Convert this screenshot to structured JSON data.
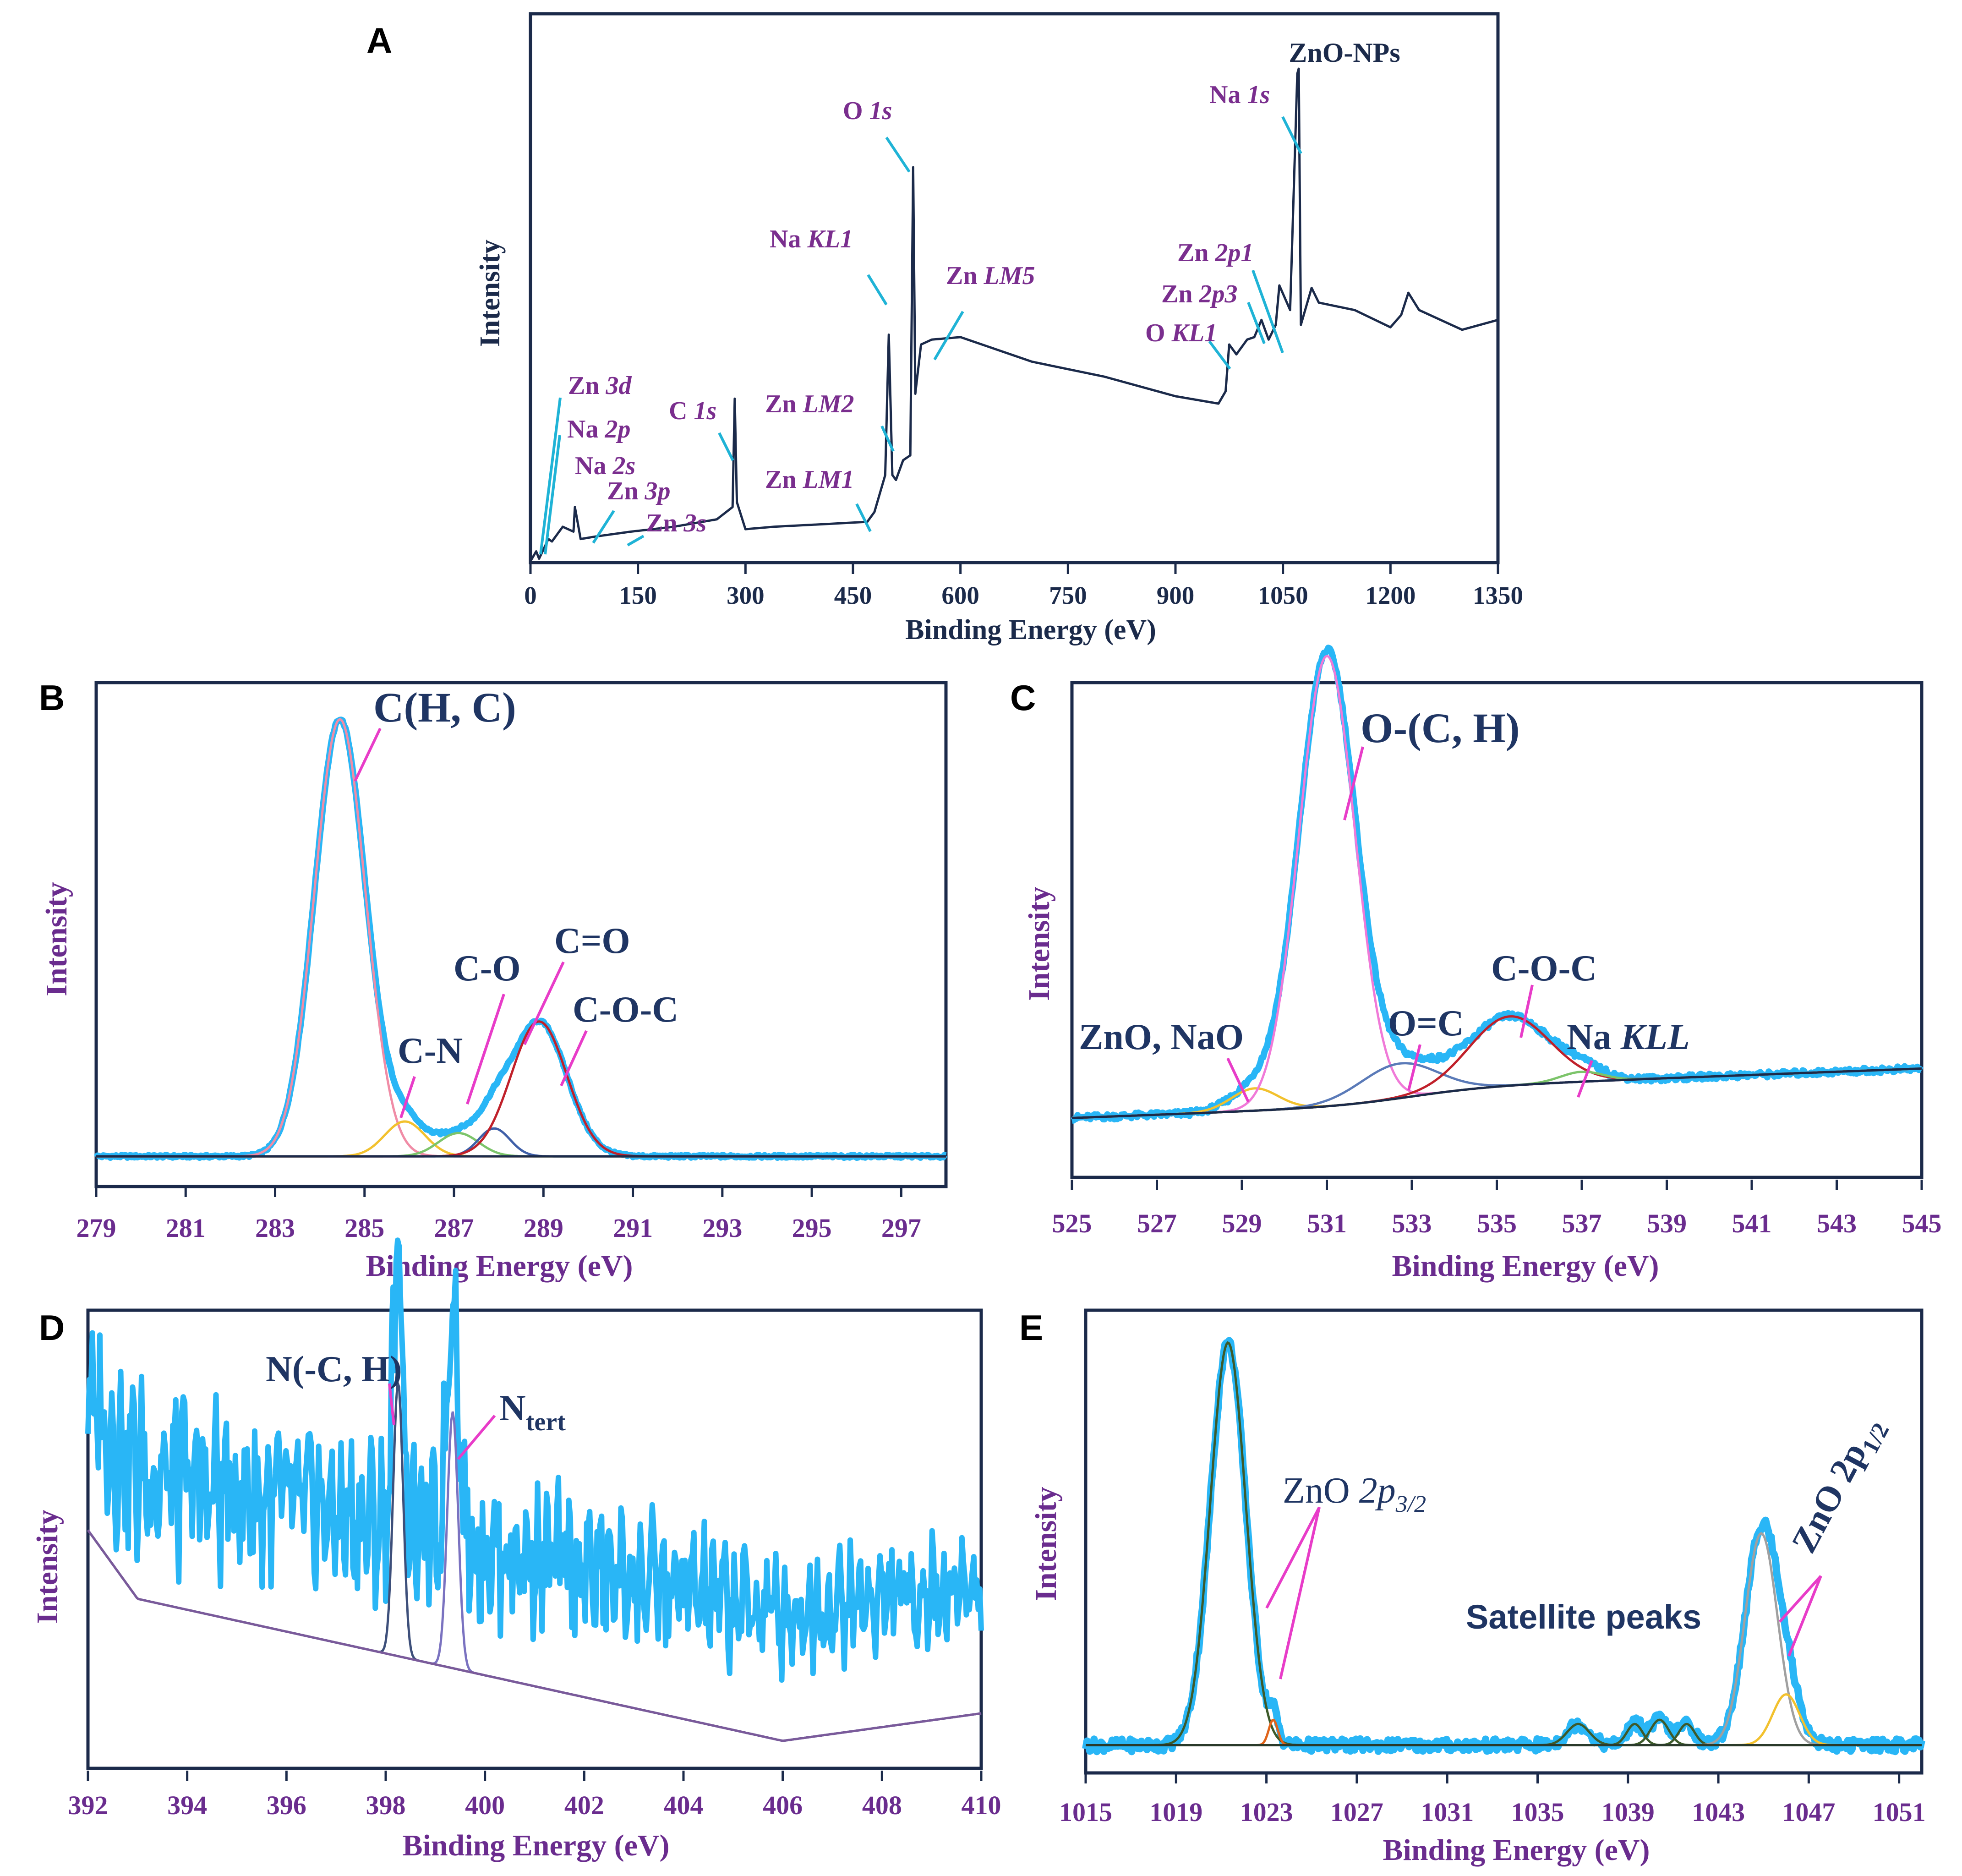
{
  "figure": {
    "panel_letters": [
      "A",
      "B",
      "C",
      "D",
      "E"
    ]
  },
  "chart_data": [
    {
      "panel": "A",
      "type": "line",
      "title": "ZnO-NPs",
      "xlabel": "Binding Energy (eV)",
      "ylabel": "Intensity",
      "xlim": [
        0,
        1350
      ],
      "xticks": [
        "0",
        "150",
        "300",
        "450",
        "600",
        "750",
        "900",
        "1050",
        "1200",
        "1350"
      ],
      "series": [
        {
          "name": "survey",
          "x": [
            0,
            8,
            12,
            25,
            30,
            45,
            60,
            62,
            70,
            90,
            140,
            200,
            260,
            282,
            285,
            288,
            300,
            340,
            420,
            470,
            480,
            495,
            500,
            505,
            510,
            520,
            530,
            534,
            537,
            545,
            560,
            600,
            700,
            800,
            900,
            960,
            970,
            975,
            985,
            1000,
            1010,
            1020,
            1030,
            1040,
            1045,
            1060,
            1070,
            1072,
            1075,
            1080,
            1090,
            1100,
            1150,
            1200,
            1215,
            1225,
            1240,
            1300,
            1350
          ],
          "y": [
            0,
            20,
            5,
            45,
            40,
            70,
            60,
            110,
            45,
            50,
            60,
            70,
            85,
            110,
            330,
            120,
            65,
            70,
            76,
            80,
            100,
            175,
            460,
            175,
            165,
            205,
            215,
            800,
            340,
            440,
            450,
            455,
            405,
            375,
            335,
            320,
            345,
            440,
            420,
            450,
            455,
            490,
            450,
            480,
            560,
            510,
            990,
            1000,
            480,
            505,
            555,
            525,
            510,
            475,
            500,
            545,
            510,
            470,
            490
          ]
        }
      ],
      "peaks": [
        {
          "element": "Zn",
          "orbital": "3d"
        },
        {
          "element": "Na",
          "orbital": "2p"
        },
        {
          "element": "Na",
          "orbital": "2s"
        },
        {
          "element": "Zn",
          "orbital": "3p"
        },
        {
          "element": "Zn",
          "orbital": "3s"
        },
        {
          "element": "C",
          "orbital": "1s"
        },
        {
          "element": "Zn",
          "orbital": "LM1"
        },
        {
          "element": "Zn",
          "orbital": "LM2"
        },
        {
          "element": "Na",
          "orbital": "KL1"
        },
        {
          "element": "O",
          "orbital": "1s"
        },
        {
          "element": "Zn",
          "orbital": "LM5"
        },
        {
          "element": "O",
          "orbital": "KL1"
        },
        {
          "element": "Zn",
          "orbital": "2p3"
        },
        {
          "element": "Zn",
          "orbital": "2p1"
        },
        {
          "element": "Na",
          "orbital": "1s"
        }
      ]
    },
    {
      "panel": "B",
      "type": "line",
      "title": "",
      "xlabel": "Binding Energy (eV)",
      "ylabel": "Intensity",
      "xlim": [
        279,
        298
      ],
      "xticks": [
        "279",
        "281",
        "283",
        "285",
        "287",
        "289",
        "291",
        "293",
        "295",
        "297"
      ],
      "components": [
        {
          "label": "C(H, C)",
          "center": 284.45,
          "height": 0.94,
          "width": 0.57,
          "color": "#f08ca6"
        },
        {
          "label": "C-N",
          "center": 285.9,
          "height": 0.075,
          "width": 0.45,
          "color": "#f2c12e"
        },
        {
          "label": "C-O",
          "center": 287.1,
          "height": 0.05,
          "width": 0.45,
          "color": "#7cc46a"
        },
        {
          "label": "C=O",
          "center": 287.9,
          "height": 0.06,
          "width": 0.35,
          "color": "#3f5fa8"
        },
        {
          "label": "C-O-C",
          "center": 288.9,
          "height": 0.29,
          "width": 0.62,
          "color": "#c0202a"
        }
      ],
      "baseline": 0.06
    },
    {
      "panel": "C",
      "type": "line",
      "title": "",
      "xlabel": "Binding Energy (eV)",
      "ylabel": "Intensity",
      "xlim": [
        525,
        545
      ],
      "xticks": [
        "525",
        "527",
        "529",
        "531",
        "533",
        "535",
        "537",
        "539",
        "541",
        "543",
        "545"
      ],
      "components": [
        {
          "label": "ZnO, NaO",
          "center": 529.3,
          "height": 0.045,
          "width": 0.55,
          "color": "#f2c12e"
        },
        {
          "label": "O-(C, H)",
          "center": 531.0,
          "height": 0.91,
          "width": 0.66,
          "color": "#f07ad8"
        },
        {
          "label": "O=C",
          "center": 532.7,
          "height": 0.07,
          "width": 0.9,
          "color": "#5a7ab8"
        },
        {
          "label": "C-O-C",
          "center": 535.3,
          "height": 0.14,
          "width": 0.95,
          "color": "#c0202a"
        },
        {
          "label": "Na KLL",
          "center": 537.0,
          "height": 0.02,
          "width": 0.5,
          "color": "#7cc46a"
        }
      ],
      "baseline_start": 0.12,
      "baseline_end": 0.22
    },
    {
      "panel": "D",
      "type": "line",
      "title": "",
      "xlabel": "Binding Energy (eV)",
      "ylabel": "Intensity",
      "xlim": [
        392,
        410
      ],
      "xticks": [
        "392",
        "394",
        "396",
        "398",
        "400",
        "402",
        "404",
        "406",
        "408",
        "410"
      ],
      "components": [
        {
          "label": "N(-C, H)",
          "center": 398.25,
          "height": 0.6,
          "width": 0.1,
          "color": "#3d4f7a"
        },
        {
          "label": "Ntert",
          "center": 399.35,
          "height": 0.56,
          "width": 0.11,
          "color": "#7a72c0"
        }
      ],
      "baseline_points": [
        [
          392,
          0.52
        ],
        [
          393,
          0.37
        ],
        [
          406,
          0.06
        ],
        [
          410,
          0.12
        ]
      ]
    },
    {
      "panel": "E",
      "type": "line",
      "title": "",
      "xlabel": "Binding Energy (eV)",
      "ylabel": "Intensity",
      "xlim": [
        1015,
        1052
      ],
      "xticks": [
        "1015",
        "1019",
        "1023",
        "1027",
        "1031",
        "1035",
        "1039",
        "1043",
        "1047",
        "1051"
      ],
      "components": [
        {
          "label": "ZnO 2p3/2 main",
          "center": 1021.3,
          "height": 0.95,
          "width": 0.78,
          "color": "#3d5a2a"
        },
        {
          "label": "ZnO 2p3/2 shoulder",
          "center": 1023.3,
          "height": 0.06,
          "width": 0.2,
          "color": "#e0641a"
        },
        {
          "label": "satellite 1",
          "center": 1036.8,
          "height": 0.05,
          "width": 0.5,
          "color": "#3d5a2a"
        },
        {
          "label": "satellite 2",
          "center": 1039.3,
          "height": 0.05,
          "width": 0.35,
          "color": "#3d5a2a"
        },
        {
          "label": "satellite 3",
          "center": 1040.4,
          "height": 0.06,
          "width": 0.4,
          "color": "#3d5a2a"
        },
        {
          "label": "satellite 4",
          "center": 1041.6,
          "height": 0.05,
          "width": 0.35,
          "color": "#3d5a2a"
        },
        {
          "label": "ZnO 2p1/2 main",
          "center": 1044.9,
          "height": 0.5,
          "width": 0.72,
          "color": "#a0a0a0"
        },
        {
          "label": "ZnO 2p1/2 minor",
          "center": 1046.0,
          "height": 0.12,
          "width": 0.6,
          "color": "#f2c12e"
        }
      ],
      "baseline": 0.06,
      "labels": {
        "p32_base": "ZnO ",
        "p32_orb": "2p",
        "p32_sub": "3/2",
        "satellite": "Satellite peaks",
        "p12_base": "ZnO ",
        "p12_orb": "2p",
        "p12_sub": "1/2"
      }
    }
  ],
  "colors": {
    "frame": "#1b2a4a",
    "survey_line": "#1b2a4a",
    "envelope": "#29b6f6",
    "leader_cyan": "#1fb3d6",
    "leader_magenta": "#e83cc8",
    "annotation_purple": "#7a2e8e",
    "annotation_navy": "#1f3563",
    "tick_purple": "#6a2c8e"
  }
}
